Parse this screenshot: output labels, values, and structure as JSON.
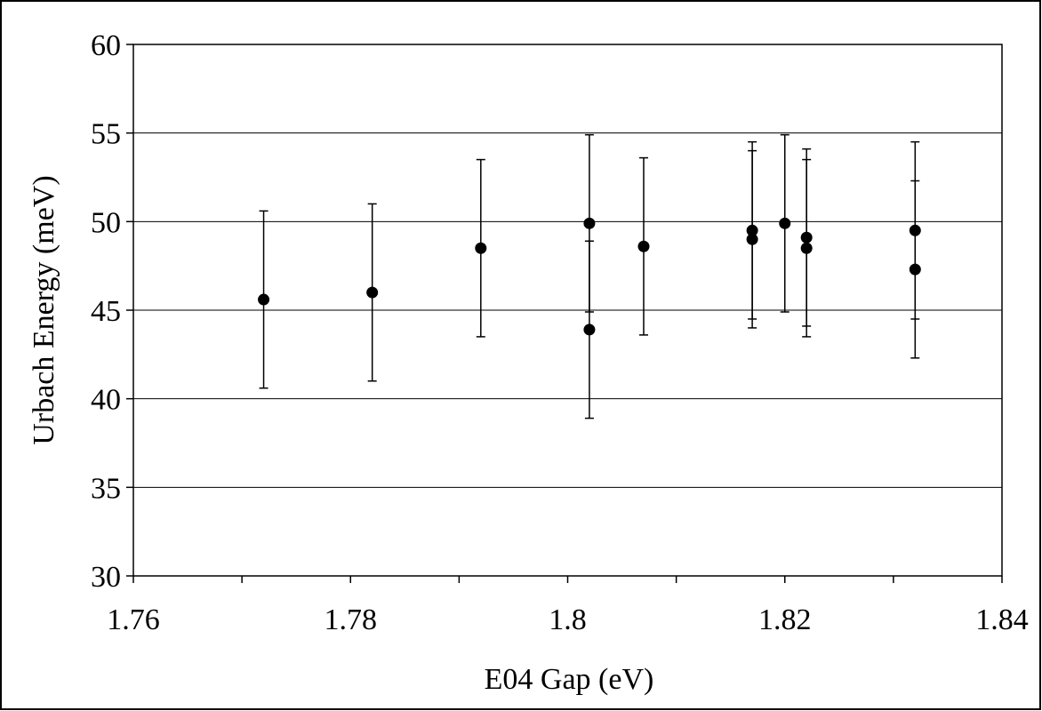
{
  "chart_data": {
    "type": "scatter",
    "title": "",
    "xlabel": "E04 Gap (eV)",
    "ylabel": "Urbach Energy (meV)",
    "xlim": [
      1.76,
      1.84
    ],
    "ylim": [
      30,
      60
    ],
    "x_ticks": [
      "1.76",
      "1.78",
      "1.8",
      "1.82",
      "1.84"
    ],
    "x_tick_values": [
      1.76,
      1.78,
      1.8,
      1.82,
      1.84
    ],
    "x_minor_ticks": [
      1.77,
      1.79,
      1.81,
      1.83
    ],
    "y_ticks": [
      "30",
      "35",
      "40",
      "45",
      "50",
      "55",
      "60"
    ],
    "y_tick_values": [
      30,
      35,
      40,
      45,
      50,
      55,
      60
    ],
    "grid": "horizontal major gridlines",
    "legend": "none",
    "marker_color": "#000000",
    "points": [
      {
        "x": 1.772,
        "y": 45.6,
        "err_low": 40.6,
        "err_high": 50.6
      },
      {
        "x": 1.782,
        "y": 46.0,
        "err_low": 41.0,
        "err_high": 51.0
      },
      {
        "x": 1.792,
        "y": 48.5,
        "err_low": 43.5,
        "err_high": 53.5
      },
      {
        "x": 1.802,
        "y": 49.9,
        "err_low": 44.9,
        "err_high": 54.9
      },
      {
        "x": 1.802,
        "y": 43.9,
        "err_low": 38.9,
        "err_high": 48.9
      },
      {
        "x": 1.807,
        "y": 48.6,
        "err_low": 43.6,
        "err_high": 53.6
      },
      {
        "x": 1.817,
        "y": 49.5,
        "err_low": 44.5,
        "err_high": 54.5
      },
      {
        "x": 1.817,
        "y": 49.0,
        "err_low": 44.0,
        "err_high": 54.0
      },
      {
        "x": 1.82,
        "y": 49.9,
        "err_low": 44.9,
        "err_high": 54.9
      },
      {
        "x": 1.822,
        "y": 49.1,
        "err_low": 44.1,
        "err_high": 54.1
      },
      {
        "x": 1.822,
        "y": 48.5,
        "err_low": 43.5,
        "err_high": 53.5
      },
      {
        "x": 1.832,
        "y": 49.5,
        "err_low": 44.5,
        "err_high": 54.5
      },
      {
        "x": 1.832,
        "y": 47.3,
        "err_low": 42.3,
        "err_high": 52.3
      }
    ]
  }
}
